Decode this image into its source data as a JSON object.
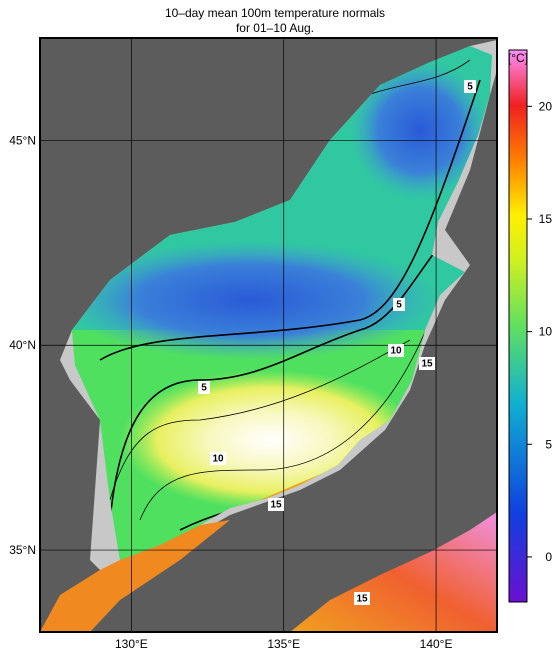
{
  "title": [
    "10–day mean 100m temperature normals",
    "for 01–10 Aug."
  ],
  "map": {
    "lon_range": [
      127,
      142
    ],
    "lat_range": [
      33,
      47.5
    ],
    "lon_ticks": [
      {
        "value": 130,
        "label": "130°E"
      },
      {
        "value": 135,
        "label": "135°E"
      },
      {
        "value": 140,
        "label": "140°E"
      }
    ],
    "lat_ticks": [
      {
        "value": 35,
        "label": "35°N"
      },
      {
        "value": 40,
        "label": "40°N"
      },
      {
        "value": 45,
        "label": "45°N"
      }
    ],
    "contour_labels": [
      "5",
      "5",
      "5",
      "10",
      "10",
      "15",
      "15",
      "15"
    ]
  },
  "colorbar": {
    "unit": "[°C]",
    "range": [
      -2,
      22.5
    ],
    "ticks": [
      0,
      5,
      10,
      15,
      20
    ]
  }
}
